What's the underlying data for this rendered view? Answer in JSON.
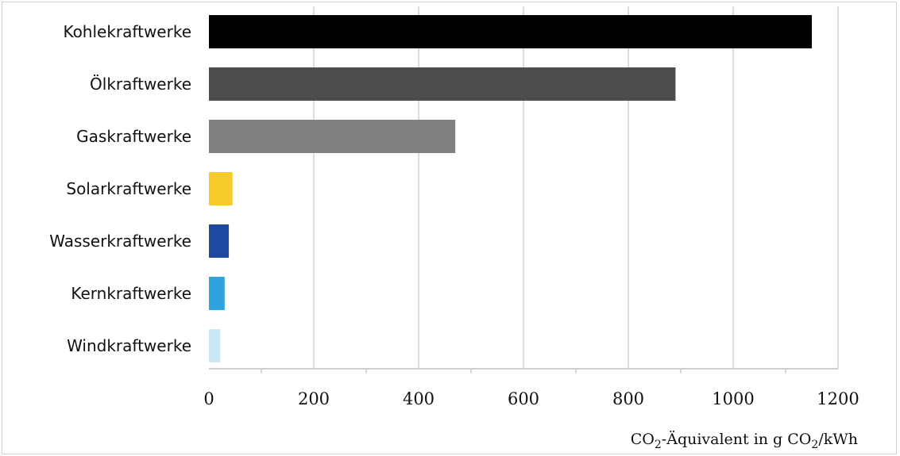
{
  "chart_data": {
    "type": "bar",
    "orientation": "horizontal",
    "categories": [
      "Kohlekraftwerke",
      "Ölkraftwerke",
      "Gaskraftwerke",
      "Solarkraftwerke",
      "Wasserkraftwerke",
      "Kernkraftwerke",
      "Windkraftwerke"
    ],
    "values": [
      1150,
      890,
      470,
      45,
      38,
      30,
      22
    ],
    "colors": [
      "#000000",
      "#4d4d4d",
      "#808080",
      "#f5cc2a",
      "#1d4aa0",
      "#2ea3e0",
      "#c9e8f7"
    ],
    "xlim": [
      0,
      1200
    ],
    "xticks": [
      0,
      200,
      400,
      600,
      800,
      1000,
      1200
    ],
    "grid": "vertical",
    "xlabel": {
      "prefix": "CO",
      "sub1": "2",
      "middle": "-Äquivalent in g CO",
      "sub2": "2",
      "suffix": "/kWh"
    }
  }
}
